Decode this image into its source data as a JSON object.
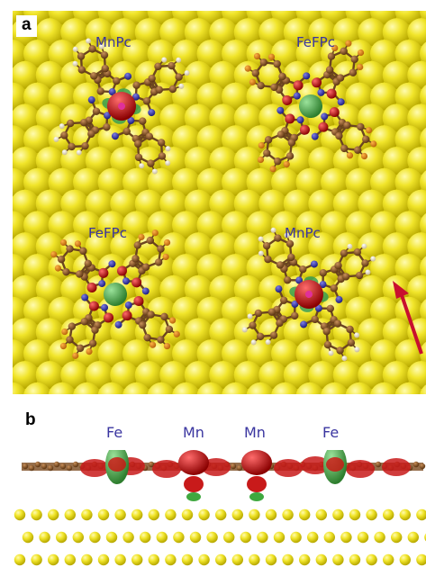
{
  "panels": {
    "a": {
      "letter": "a"
    },
    "b": {
      "letter": "b"
    }
  },
  "panel_a_labels": [
    "MnPc",
    "FeFPc",
    "FeFPc",
    "MnPc"
  ],
  "panel_b_labels": [
    "Fe",
    "Mn",
    "Mn",
    "Fe"
  ],
  "colors": {
    "substrate_atom": "#e8e21a",
    "carbon": "#8b5a2b",
    "nitrogen": "#3434b0",
    "oxygen_spin_red": "#d01010",
    "spin_green": "#3fa83f",
    "hydrogen": "#f4ead0",
    "label_text": "#3a35a0",
    "arrow": "#c8102e"
  }
}
